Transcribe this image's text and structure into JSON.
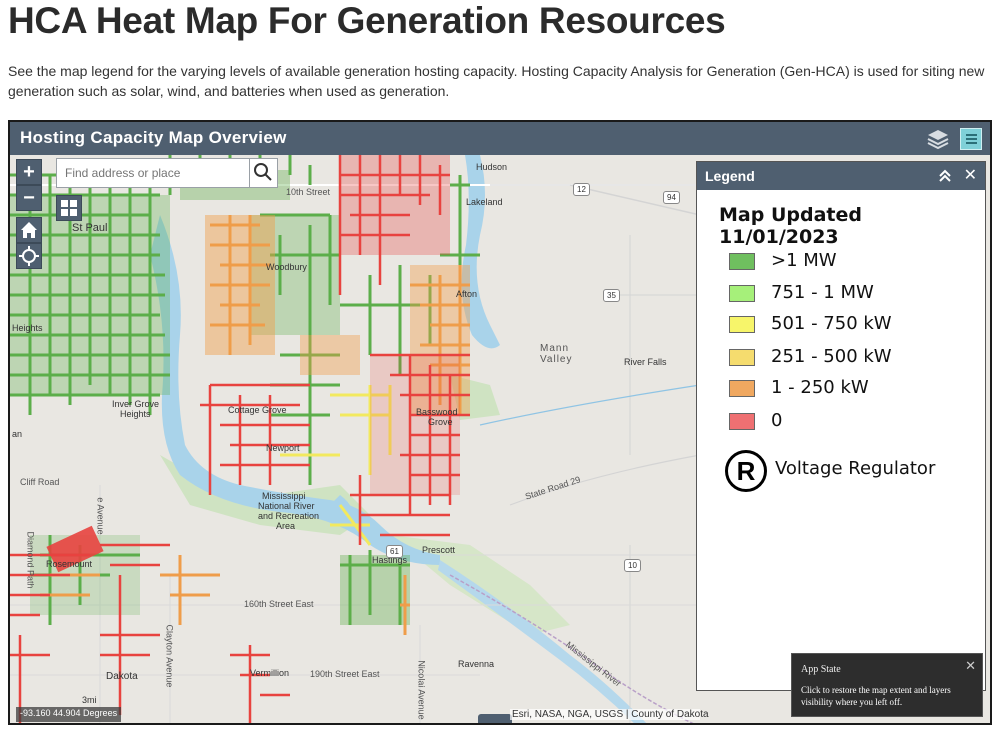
{
  "page": {
    "title": "HCA Heat Map For Generation Resources",
    "intro": "See the map legend for the varying levels of available generation hosting capacity. Hosting Capacity Analysis for Generation (Gen-HCA) is used for siting new generation such as solar, wind, and batteries when used as generation."
  },
  "map": {
    "header_title": "Hosting Capacity Map Overview",
    "header_icons": [
      "layers-icon",
      "legend-list-icon"
    ],
    "zoom_in_label": "+",
    "zoom_out_label": "−",
    "search": {
      "placeholder": "Find address or place",
      "value": ""
    },
    "tools": [
      "basemap-gallery-icon",
      "home-icon",
      "locate-icon",
      "search-icon"
    ],
    "coordinates": "-93.160 44.904 Degrees",
    "attribution": "Esri, NASA, NGA, USGS | County of Dakota",
    "labels": {
      "hudson": "Hudson",
      "lakeland": "Lakeland",
      "st_paul": "St Paul",
      "woodbury": "Woodbury",
      "afton": "Afton",
      "heights": "Heights",
      "inver_grove": "Inver Grove",
      "inver_grove_2": "Heights",
      "cottage_grove": "Cottage Grove",
      "basswood": "Basswood",
      "basswood_2": "Grove",
      "newport": "Newport",
      "mann_valley": "Mann",
      "mann_valley_2": "Valley",
      "river_falls": "River Falls",
      "mississippi": "Mississippi",
      "mississippi_2": "National River",
      "mississippi_3": "and Recreation",
      "mississippi_4": "Area",
      "prescott": "Prescott",
      "rosemount": "Rosemount",
      "vermillion": "Vermillion",
      "ravenna": "Ravenna",
      "dakota": "Dakota",
      "hastings": "Hastings",
      "street_10th": "10th Street",
      "street_160th": "160th Street East",
      "street_190th": "190th Street East",
      "state_road": "State Road 29",
      "cliff_road": "Cliff Road",
      "diamond_path": "Diamond Path",
      "clayton_ave": "Clayton Avenue",
      "nicolai_ave": "Nicolai Avenue",
      "river_label": "Mississippi River",
      "an": "an",
      "e_avenue": "e Avenue",
      "three_mi": "3mi"
    },
    "shields": {
      "r12": "12",
      "r94": "94",
      "r35": "35",
      "r10": "10",
      "r61": "61"
    }
  },
  "legend": {
    "title": "Legend",
    "updated": "Map Updated 11/01/2023",
    "items": [
      {
        "label": ">1 MW",
        "color": "#6fbf5f"
      },
      {
        "label": "751 - 1 MW",
        "color": "#a6f07a"
      },
      {
        "label": "501 - 750 kW",
        "color": "#f7f56a"
      },
      {
        "label": "251 - 500 kW",
        "color": "#f5dc6e"
      },
      {
        "label": "1 - 250 kW",
        "color": "#f0a860"
      },
      {
        "label": "0",
        "color": "#ef7072"
      }
    ],
    "regulator_symbol": "R",
    "regulator_label": "Voltage Regulator"
  },
  "app_state": {
    "title": "App State",
    "description": "Click to restore the map extent and layers visibility where you left off."
  },
  "colors": {
    "header": "#4f5f70",
    "water": "#a9d3ea",
    "park": "#cfe3c2",
    "land": "#e9e7e2"
  }
}
